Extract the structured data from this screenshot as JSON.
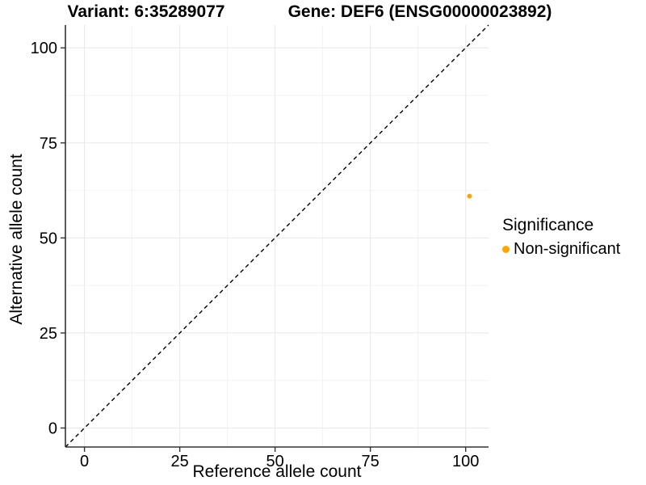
{
  "titles": {
    "variant": "Variant: 6:35289077",
    "gene": "Gene: DEF6 (ENSG00000023892)"
  },
  "legend": {
    "title": "Significance",
    "items": [
      {
        "label": "Non-significant",
        "color": "#FFA500"
      }
    ]
  },
  "chart_data": {
    "type": "scatter",
    "title": "Variant: 6:35289077   Gene: DEF6 (ENSG00000023892)",
    "xlabel": "Reference allele count",
    "ylabel": "Alternative allele count",
    "xlim": [
      -5,
      106
    ],
    "ylim": [
      -5,
      106
    ],
    "xticks": [
      0,
      25,
      50,
      75,
      100
    ],
    "yticks": [
      0,
      25,
      50,
      75,
      100
    ],
    "minor_xticks": [
      12.5,
      37.5,
      62.5,
      87.5
    ],
    "minor_yticks": [
      12.5,
      37.5,
      62.5,
      87.5
    ],
    "grid": true,
    "legend_position": "right",
    "legend_title": "Significance",
    "series": [
      {
        "name": "Non-significant",
        "color": "#FFA500",
        "points": [
          {
            "x": 101,
            "y": 61
          }
        ]
      }
    ],
    "reference_line": {
      "type": "identity",
      "slope": 1,
      "intercept": 0,
      "style": "dashed",
      "color": "#000000"
    }
  },
  "colors": {
    "point": "#FFA500",
    "axis": "#333333",
    "grid_major": "#e8e8e8",
    "grid_minor": "#f2f2f2",
    "background": "#ffffff"
  }
}
